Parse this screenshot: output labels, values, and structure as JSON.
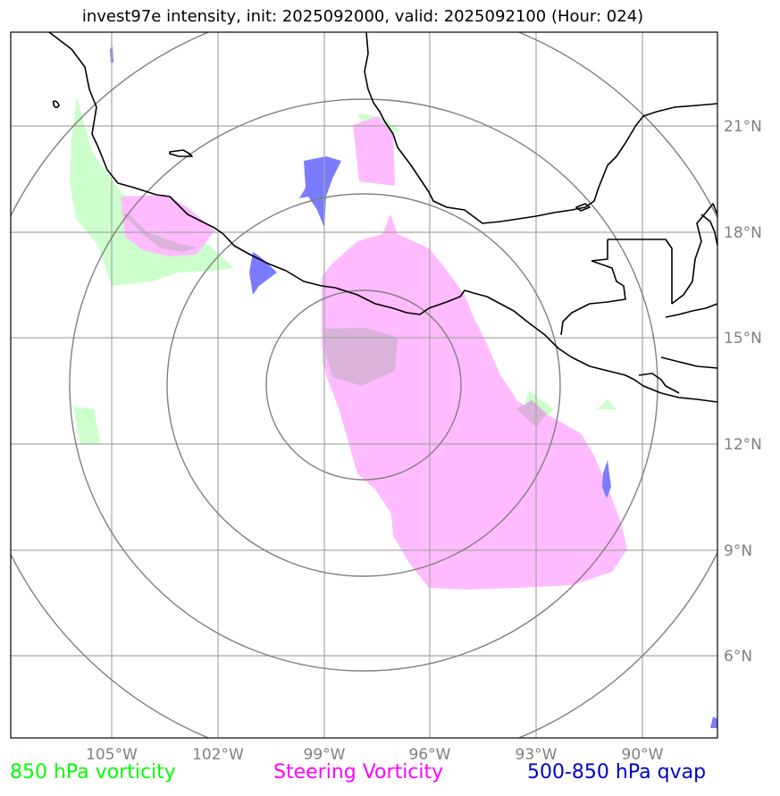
{
  "title": "invest97e intensity, init: 2025092000, valid: 2025092100 (Hour: 024)",
  "longitude_labels": [
    "105°W",
    "102°W",
    "99°W",
    "96°W",
    "93°W",
    "90°W"
  ],
  "latitude_labels": [
    "21°N",
    "18°N",
    "15°N",
    "12°N",
    "9°N",
    "6°N"
  ],
  "legend": [
    {
      "label": "850 hPa vorticity",
      "color": "#00ff00"
    },
    {
      "label": "Steering Vorticity",
      "color": "#ff00ff"
    },
    {
      "label": "500-850 hPa qvap",
      "color": "#0000cc"
    }
  ],
  "colors": {
    "vorticity_850_fill": "#ccffcc",
    "steering_vorticity_fill": "#ffbbff",
    "qvap_fill": "#7b7bff",
    "overlap_fill": "#d9b3d9",
    "gridline": "#a6a6a6",
    "range_ring": "#808080",
    "coastline": "#000000"
  }
}
